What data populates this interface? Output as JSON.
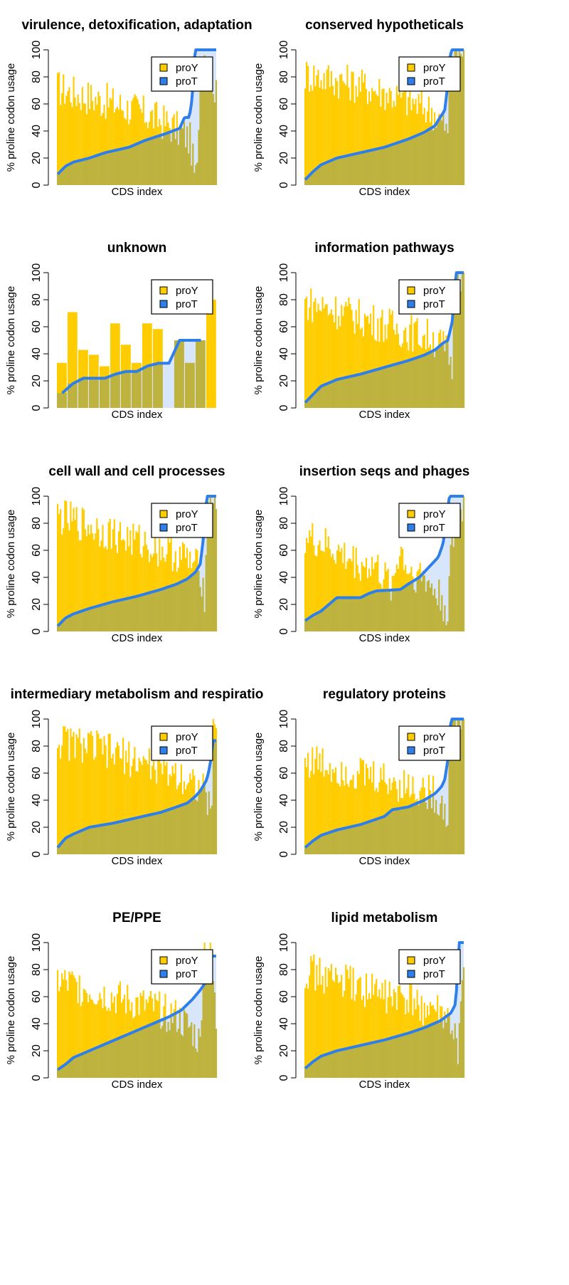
{
  "figure": {
    "legend_labels": [
      "proY",
      "proT"
    ],
    "colors": {
      "proY": "#FFCC00",
      "proT": "#2F7FEA",
      "proT_fill": "#D8E6FB",
      "overlap": "#B3AE4A"
    }
  },
  "chart_data": [
    {
      "type": "bar",
      "title": "virulence, detoxification, adaptation",
      "xlabel": "CDS index",
      "ylabel": "% proline codon usage",
      "ylim": [
        0,
        100
      ],
      "yticks": [
        0,
        20,
        40,
        60,
        80,
        100
      ],
      "legend": "top-right",
      "grid": false,
      "series": [
        {
          "name": "proY",
          "shape": [
            [
              0,
              72
            ],
            [
              0.1,
              68
            ],
            [
              0.3,
              62
            ],
            [
              0.5,
              55
            ],
            [
              0.7,
              45
            ],
            [
              0.8,
              38
            ],
            [
              0.84,
              32
            ],
            [
              0.86,
              10
            ],
            [
              0.88,
              5
            ],
            [
              0.9,
              100
            ],
            [
              0.96,
              95
            ],
            [
              1,
              65
            ]
          ]
        },
        {
          "name": "proT",
          "shape": [
            [
              0,
              8
            ],
            [
              0.05,
              14
            ],
            [
              0.1,
              17
            ],
            [
              0.2,
              20
            ],
            [
              0.3,
              24
            ],
            [
              0.45,
              28
            ],
            [
              0.55,
              33
            ],
            [
              0.68,
              38
            ],
            [
              0.77,
              42
            ],
            [
              0.8,
              50
            ],
            [
              0.83,
              50
            ],
            [
              0.85,
              65
            ],
            [
              0.865,
              100
            ]
          ]
        }
      ]
    },
    {
      "type": "bar",
      "title": "conserved hypotheticals",
      "xlabel": "CDS index",
      "ylabel": "% proline codon usage",
      "ylim": [
        0,
        100
      ],
      "yticks": [
        0,
        20,
        40,
        60,
        80,
        100
      ],
      "legend": "top-right",
      "grid": false,
      "series": [
        {
          "name": "proY",
          "shape": [
            [
              0,
              82
            ],
            [
              0.2,
              78
            ],
            [
              0.4,
              72
            ],
            [
              0.6,
              65
            ],
            [
              0.8,
              55
            ],
            [
              0.88,
              45
            ],
            [
              0.9,
              35
            ],
            [
              0.91,
              100
            ],
            [
              1,
              100
            ]
          ]
        },
        {
          "name": "proT",
          "shape": [
            [
              0,
              4
            ],
            [
              0.05,
              10
            ],
            [
              0.1,
              15
            ],
            [
              0.2,
              20
            ],
            [
              0.35,
              24
            ],
            [
              0.5,
              28
            ],
            [
              0.65,
              34
            ],
            [
              0.75,
              39
            ],
            [
              0.82,
              44
            ],
            [
              0.85,
              50
            ],
            [
              0.88,
              55
            ],
            [
              0.9,
              75
            ],
            [
              0.92,
              100
            ]
          ]
        }
      ]
    },
    {
      "type": "bar",
      "title": "unknown",
      "xlabel": "CDS index",
      "ylabel": "% proline codon usage",
      "ylim": [
        0,
        100
      ],
      "yticks": [
        0,
        20,
        40,
        60,
        80,
        100
      ],
      "legend": "top-right",
      "grid": false,
      "series": [
        {
          "name": "proY",
          "values": [
            33.3,
            70.8,
            42.9,
            39.3,
            30.8,
            62.5,
            46.7,
            33.3,
            62.5,
            58.3,
            0,
            50,
            33.3,
            50,
            80
          ]
        },
        {
          "name": "proT",
          "values": [
            11,
            18,
            22,
            22,
            22,
            25,
            27,
            27,
            31,
            33,
            33,
            50,
            50,
            50,
            null
          ]
        }
      ]
    },
    {
      "type": "bar",
      "title": "information pathways",
      "xlabel": "CDS index",
      "ylabel": "% proline codon usage",
      "ylim": [
        0,
        100
      ],
      "yticks": [
        0,
        20,
        40,
        60,
        80,
        100
      ],
      "legend": "top-right",
      "grid": false,
      "series": [
        {
          "name": "proY",
          "shape": [
            [
              0,
              78
            ],
            [
              0.2,
              72
            ],
            [
              0.4,
              65
            ],
            [
              0.6,
              58
            ],
            [
              0.8,
              52
            ],
            [
              0.9,
              42
            ],
            [
              0.93,
              30
            ],
            [
              0.94,
              100
            ],
            [
              1,
              100
            ]
          ]
        },
        {
          "name": "proT",
          "shape": [
            [
              0,
              4
            ],
            [
              0.05,
              10
            ],
            [
              0.1,
              16
            ],
            [
              0.2,
              21
            ],
            [
              0.35,
              25
            ],
            [
              0.5,
              30
            ],
            [
              0.65,
              35
            ],
            [
              0.75,
              39
            ],
            [
              0.82,
              43
            ],
            [
              0.87,
              48
            ],
            [
              0.9,
              50
            ],
            [
              0.93,
              65
            ],
            [
              0.95,
              100
            ]
          ]
        }
      ]
    },
    {
      "type": "bar",
      "title": "cell wall and cell processes",
      "xlabel": "CDS index",
      "ylabel": "% proline codon usage",
      "ylim": [
        0,
        100
      ],
      "yticks": [
        0,
        20,
        40,
        60,
        80,
        100
      ],
      "legend": "top-right",
      "grid": false,
      "series": [
        {
          "name": "proY",
          "shape": [
            [
              0,
              85
            ],
            [
              0.2,
              78
            ],
            [
              0.4,
              70
            ],
            [
              0.6,
              63
            ],
            [
              0.8,
              55
            ],
            [
              0.9,
              45
            ],
            [
              0.93,
              25
            ],
            [
              0.94,
              100
            ],
            [
              1,
              100
            ]
          ]
        },
        {
          "name": "proT",
          "shape": [
            [
              0,
              4
            ],
            [
              0.05,
              10
            ],
            [
              0.1,
              13
            ],
            [
              0.2,
              17
            ],
            [
              0.35,
              22
            ],
            [
              0.5,
              26
            ],
            [
              0.65,
              31
            ],
            [
              0.75,
              35
            ],
            [
              0.82,
              39
            ],
            [
              0.87,
              44
            ],
            [
              0.9,
              50
            ],
            [
              0.92,
              70
            ],
            [
              0.94,
              100
            ]
          ]
        }
      ]
    },
    {
      "type": "bar",
      "title": "insertion seqs and phages",
      "xlabel": "CDS index",
      "ylabel": "% proline codon usage",
      "ylim": [
        0,
        100
      ],
      "yticks": [
        0,
        20,
        40,
        60,
        80,
        100
      ],
      "legend": "top-right",
      "grid": false,
      "series": [
        {
          "name": "proY",
          "shape": [
            [
              0,
              70
            ],
            [
              0.15,
              62
            ],
            [
              0.25,
              55
            ],
            [
              0.35,
              50
            ],
            [
              0.45,
              48
            ],
            [
              0.5,
              38
            ],
            [
              0.55,
              35
            ],
            [
              0.6,
              62
            ],
            [
              0.65,
              45
            ],
            [
              0.75,
              40
            ],
            [
              0.85,
              25
            ],
            [
              0.9,
              15
            ],
            [
              0.92,
              60
            ],
            [
              1,
              95
            ]
          ]
        },
        {
          "name": "proT",
          "shape": [
            [
              0,
              8
            ],
            [
              0.05,
              12
            ],
            [
              0.1,
              15
            ],
            [
              0.15,
              20
            ],
            [
              0.2,
              25
            ],
            [
              0.35,
              25
            ],
            [
              0.4,
              28
            ],
            [
              0.45,
              30
            ],
            [
              0.6,
              31
            ],
            [
              0.65,
              35
            ],
            [
              0.72,
              40
            ],
            [
              0.76,
              45
            ],
            [
              0.8,
              50
            ],
            [
              0.84,
              55
            ],
            [
              0.87,
              65
            ],
            [
              0.91,
              100
            ]
          ]
        }
      ]
    },
    {
      "type": "bar",
      "title": "intermediary metabolism and respiratio",
      "xlabel": "CDS index",
      "ylabel": "% proline codon usage",
      "ylim": [
        0,
        100
      ],
      "yticks": [
        0,
        20,
        40,
        60,
        80,
        100
      ],
      "legend": "top-right",
      "grid": false,
      "series": [
        {
          "name": "proY",
          "shape": [
            [
              0,
              84
            ],
            [
              0.2,
              80
            ],
            [
              0.4,
              73
            ],
            [
              0.6,
              66
            ],
            [
              0.8,
              58
            ],
            [
              0.9,
              50
            ],
            [
              0.95,
              40
            ],
            [
              0.97,
              20
            ],
            [
              0.98,
              100
            ],
            [
              1,
              100
            ]
          ]
        },
        {
          "name": "proT",
          "shape": [
            [
              0,
              5
            ],
            [
              0.05,
              12
            ],
            [
              0.1,
              15
            ],
            [
              0.2,
              20
            ],
            [
              0.35,
              23
            ],
            [
              0.5,
              27
            ],
            [
              0.65,
              31
            ],
            [
              0.75,
              35
            ],
            [
              0.82,
              38
            ],
            [
              0.87,
              43
            ],
            [
              0.9,
              47
            ],
            [
              0.94,
              55
            ],
            [
              0.96,
              65
            ],
            [
              0.98,
              84
            ]
          ]
        }
      ]
    },
    {
      "type": "bar",
      "title": "regulatory proteins",
      "xlabel": "CDS index",
      "ylabel": "% proline codon usage",
      "ylim": [
        0,
        100
      ],
      "yticks": [
        0,
        20,
        40,
        60,
        80,
        100
      ],
      "legend": "top-right",
      "grid": false,
      "series": [
        {
          "name": "proY",
          "shape": [
            [
              0,
              70
            ],
            [
              0.2,
              64
            ],
            [
              0.4,
              58
            ],
            [
              0.6,
              52
            ],
            [
              0.8,
              45
            ],
            [
              0.88,
              35
            ],
            [
              0.9,
              20
            ],
            [
              0.91,
              100
            ],
            [
              1,
              100
            ]
          ]
        },
        {
          "name": "proT",
          "shape": [
            [
              0,
              5
            ],
            [
              0.05,
              10
            ],
            [
              0.1,
              14
            ],
            [
              0.2,
              18
            ],
            [
              0.35,
              22
            ],
            [
              0.5,
              28
            ],
            [
              0.55,
              33
            ],
            [
              0.65,
              35
            ],
            [
              0.75,
              40
            ],
            [
              0.82,
              45
            ],
            [
              0.86,
              50
            ],
            [
              0.88,
              55
            ],
            [
              0.9,
              70
            ],
            [
              0.92,
              100
            ]
          ]
        }
      ]
    },
    {
      "type": "bar",
      "title": "PE/PPE",
      "xlabel": "CDS index",
      "ylabel": "% proline codon usage",
      "ylim": [
        0,
        100
      ],
      "yticks": [
        0,
        20,
        40,
        60,
        80,
        100
      ],
      "legend": "top-right",
      "grid": false,
      "series": [
        {
          "name": "proY",
          "shape": [
            [
              0,
              72
            ],
            [
              0.2,
              65
            ],
            [
              0.4,
              58
            ],
            [
              0.6,
              52
            ],
            [
              0.75,
              45
            ],
            [
              0.85,
              35
            ],
            [
              0.9,
              25
            ],
            [
              0.92,
              100
            ],
            [
              0.97,
              90
            ],
            [
              1,
              40
            ]
          ]
        },
        {
          "name": "proT",
          "shape": [
            [
              0,
              6
            ],
            [
              0.05,
              10
            ],
            [
              0.1,
              15
            ],
            [
              0.2,
              20
            ],
            [
              0.3,
              25
            ],
            [
              0.4,
              30
            ],
            [
              0.5,
              35
            ],
            [
              0.6,
              40
            ],
            [
              0.7,
              45
            ],
            [
              0.78,
              50
            ],
            [
              0.85,
              58
            ],
            [
              0.9,
              65
            ],
            [
              0.93,
              70
            ],
            [
              0.95,
              90
            ]
          ]
        }
      ]
    },
    {
      "type": "bar",
      "title": "lipid metabolism",
      "xlabel": "CDS index",
      "ylabel": "% proline codon usage",
      "ylim": [
        0,
        100
      ],
      "yticks": [
        0,
        20,
        40,
        60,
        80,
        100
      ],
      "legend": "top-right",
      "grid": false,
      "series": [
        {
          "name": "proY",
          "shape": [
            [
              0,
              80
            ],
            [
              0.2,
              72
            ],
            [
              0.4,
              65
            ],
            [
              0.6,
              58
            ],
            [
              0.8,
              50
            ],
            [
              0.9,
              42
            ],
            [
              0.94,
              30
            ],
            [
              0.96,
              20
            ],
            [
              1,
              70
            ]
          ]
        },
        {
          "name": "proT",
          "shape": [
            [
              0,
              7
            ],
            [
              0.05,
              12
            ],
            [
              0.1,
              16
            ],
            [
              0.2,
              20
            ],
            [
              0.35,
              24
            ],
            [
              0.5,
              28
            ],
            [
              0.65,
              33
            ],
            [
              0.75,
              37
            ],
            [
              0.85,
              42
            ],
            [
              0.92,
              48
            ],
            [
              0.95,
              55
            ],
            [
              0.97,
              100
            ]
          ]
        }
      ]
    }
  ]
}
